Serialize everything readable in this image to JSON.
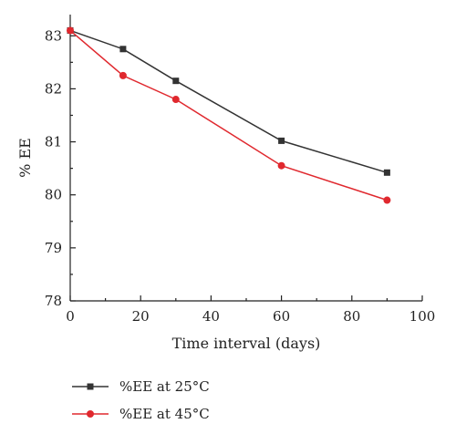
{
  "chart_data": {
    "type": "line",
    "title": "",
    "xlabel": "Time interval (days)",
    "ylabel": "% EE",
    "xlim": [
      0,
      100
    ],
    "ylim": [
      78,
      83.4
    ],
    "x_ticks": [
      0,
      20,
      40,
      60,
      80,
      100
    ],
    "y_ticks": [
      78,
      79,
      80,
      81,
      82,
      83
    ],
    "grid": false,
    "legend_position": "bottom-left",
    "series": [
      {
        "name": "%EE at 25°C",
        "color": "#333333",
        "marker": "square",
        "x": [
          0,
          15,
          30,
          60,
          90
        ],
        "y": [
          83.1,
          82.75,
          82.15,
          81.02,
          80.42
        ]
      },
      {
        "name": "%EE at 45°C",
        "color": "#e0282e",
        "marker": "circle",
        "x": [
          0,
          15,
          30,
          60,
          90
        ],
        "y": [
          83.1,
          82.25,
          81.8,
          80.55,
          79.9
        ]
      }
    ]
  }
}
